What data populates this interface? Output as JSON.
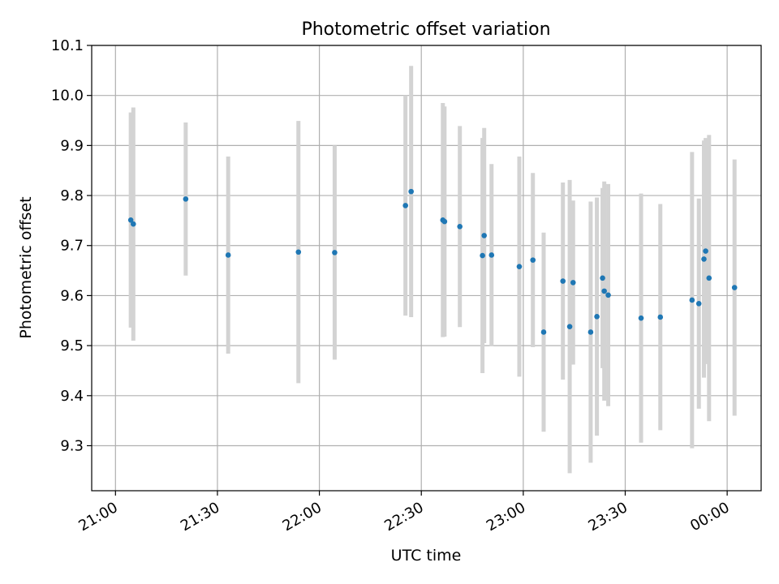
{
  "chart_data": {
    "type": "scatter",
    "title": "Photometric offset variation",
    "xlabel": "UTC time",
    "ylabel": "Photometric offset",
    "xlim": [
      "20:53",
      "00:10"
    ],
    "ylim": [
      9.21,
      10.1
    ],
    "x_ticks": [
      "21:00",
      "21:30",
      "22:00",
      "22:30",
      "23:00",
      "23:30",
      "00:00"
    ],
    "y_ticks": [
      "9.3",
      "9.4",
      "9.5",
      "9.6",
      "9.7",
      "9.8",
      "9.9",
      "10.0",
      "10.1"
    ],
    "grid": true,
    "colors": {
      "point": "#1f77b4",
      "errorbar": "#d3d3d3",
      "grid": "#b0b0b0"
    },
    "points": [
      {
        "x": "21:04:30",
        "y": 9.751,
        "err": 0.215
      },
      {
        "x": "21:05:15",
        "y": 9.743,
        "err": 0.233
      },
      {
        "x": "21:20:40",
        "y": 9.793,
        "err": 0.153
      },
      {
        "x": "21:33:10",
        "y": 9.681,
        "err": 0.197
      },
      {
        "x": "21:53:50",
        "y": 9.687,
        "err": 0.262
      },
      {
        "x": "22:04:30",
        "y": 9.686,
        "err": 0.214
      },
      {
        "x": "22:25:20",
        "y": 9.78,
        "err": 0.22
      },
      {
        "x": "22:27:00",
        "y": 9.808,
        "err": 0.251
      },
      {
        "x": "22:36:20",
        "y": 9.751,
        "err": 0.234
      },
      {
        "x": "22:36:50",
        "y": 9.748,
        "err": 0.23
      },
      {
        "x": "22:41:20",
        "y": 9.738,
        "err": 0.201
      },
      {
        "x": "22:48:00",
        "y": 9.68,
        "err": 0.235
      },
      {
        "x": "22:48:30",
        "y": 9.72,
        "err": 0.215
      },
      {
        "x": "22:50:40",
        "y": 9.681,
        "err": 0.182
      },
      {
        "x": "22:58:50",
        "y": 9.658,
        "err": 0.22
      },
      {
        "x": "23:02:50",
        "y": 9.671,
        "err": 0.174
      },
      {
        "x": "23:06:00",
        "y": 9.527,
        "err": 0.199
      },
      {
        "x": "23:11:40",
        "y": 9.629,
        "err": 0.197
      },
      {
        "x": "23:13:40",
        "y": 9.538,
        "err": 0.293
      },
      {
        "x": "23:14:40",
        "y": 9.626,
        "err": 0.164
      },
      {
        "x": "23:19:50",
        "y": 9.527,
        "err": 0.261
      },
      {
        "x": "23:21:40",
        "y": 9.558,
        "err": 0.238
      },
      {
        "x": "23:23:20",
        "y": 9.635,
        "err": 0.18
      },
      {
        "x": "23:23:50",
        "y": 9.609,
        "err": 0.219
      },
      {
        "x": "23:25:00",
        "y": 9.601,
        "err": 0.222
      },
      {
        "x": "23:34:40",
        "y": 9.555,
        "err": 0.249
      },
      {
        "x": "23:40:20",
        "y": 9.557,
        "err": 0.226
      },
      {
        "x": "23:49:40",
        "y": 9.591,
        "err": 0.296
      },
      {
        "x": "23:51:40",
        "y": 9.584,
        "err": 0.21
      },
      {
        "x": "23:53:10",
        "y": 9.673,
        "err": 0.237
      },
      {
        "x": "23:53:40",
        "y": 9.689,
        "err": 0.226
      },
      {
        "x": "23:54:40",
        "y": 9.635,
        "err": 0.286
      },
      {
        "x": "00:02:10",
        "y": 9.616,
        "err": 0.256
      }
    ]
  }
}
